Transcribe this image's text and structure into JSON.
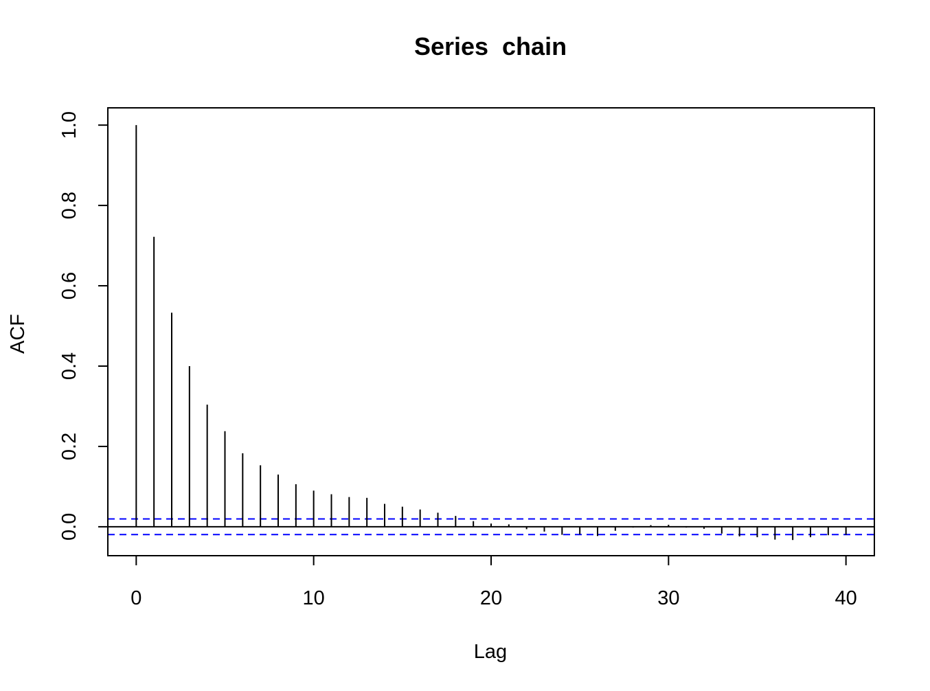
{
  "chart_data": {
    "type": "bar",
    "subtype": "acf",
    "title": "Series  chain",
    "xlabel": "Lag",
    "ylabel": "ACF",
    "xlim": [
      -1.6,
      41.6
    ],
    "ylim": [
      -0.072,
      1.043
    ],
    "x_ticks": [
      0,
      10,
      20,
      30,
      40
    ],
    "x_tick_labels": [
      "0",
      "10",
      "20",
      "30",
      "40"
    ],
    "y_ticks": [
      0.0,
      0.2,
      0.4,
      0.6,
      0.8,
      1.0
    ],
    "y_tick_labels": [
      "0.0",
      "0.2",
      "0.4",
      "0.6",
      "0.8",
      "1.0"
    ],
    "grid": false,
    "series": [
      {
        "lags": [
          0,
          1,
          2,
          3,
          4,
          5,
          6,
          7,
          8,
          9,
          10,
          11,
          12,
          13,
          14,
          15,
          16,
          17,
          18,
          19,
          20,
          21,
          22,
          23,
          24,
          25,
          26,
          27,
          28,
          29,
          30,
          31,
          32,
          33,
          34,
          35,
          36,
          37,
          38,
          39,
          40
        ],
        "values": [
          1.0,
          0.722,
          0.533,
          0.4,
          0.304,
          0.238,
          0.183,
          0.153,
          0.13,
          0.106,
          0.09,
          0.081,
          0.074,
          0.072,
          0.057,
          0.05,
          0.043,
          0.035,
          0.027,
          0.014,
          0.008,
          0.006,
          -0.006,
          -0.012,
          -0.02,
          -0.019,
          -0.023,
          -0.01,
          -0.002,
          0.004,
          0.005,
          -0.002,
          -0.005,
          -0.017,
          -0.024,
          -0.026,
          -0.032,
          -0.033,
          -0.026,
          -0.021,
          -0.02
        ]
      }
    ],
    "confidence_bounds": [
      0.0195,
      -0.0195
    ],
    "colors": {
      "bars": "#000000",
      "confidence": "#0000ff",
      "frame": "#000000",
      "zero_line": "#000000"
    }
  }
}
